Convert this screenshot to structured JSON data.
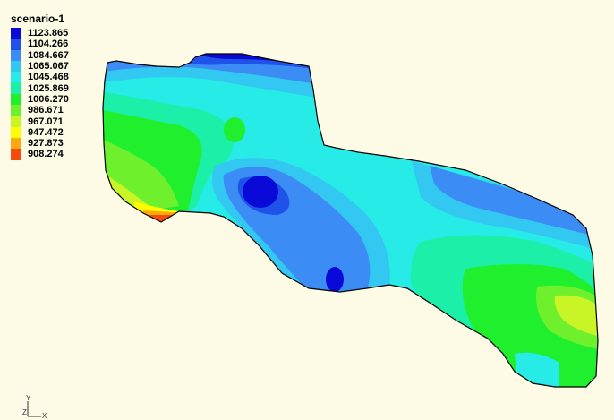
{
  "legend": {
    "title": "scenario-1",
    "entries": [
      {
        "value": "1123.865",
        "color": "#0a0ad8"
      },
      {
        "value": "1104.266",
        "color": "#1f52e8"
      },
      {
        "value": "1084.667",
        "color": "#3c8cf5"
      },
      {
        "value": "1065.067",
        "color": "#33c8f2"
      },
      {
        "value": "1045.468",
        "color": "#27ebe6"
      },
      {
        "value": "1025.869",
        "color": "#1cf0a8"
      },
      {
        "value": "1006.270",
        "color": "#1fef2c"
      },
      {
        "value": "986.671",
        "color": "#6ef02d"
      },
      {
        "value": "967.071",
        "color": "#c9f526"
      },
      {
        "value": "947.472",
        "color": "#fdfd00"
      },
      {
        "value": "927.873",
        "color": "#fca90f"
      },
      {
        "value": "908.274",
        "color": "#f84b0b"
      }
    ]
  },
  "axis": {
    "y_label": "Y",
    "z_label": "Z",
    "x_label": "X"
  }
}
